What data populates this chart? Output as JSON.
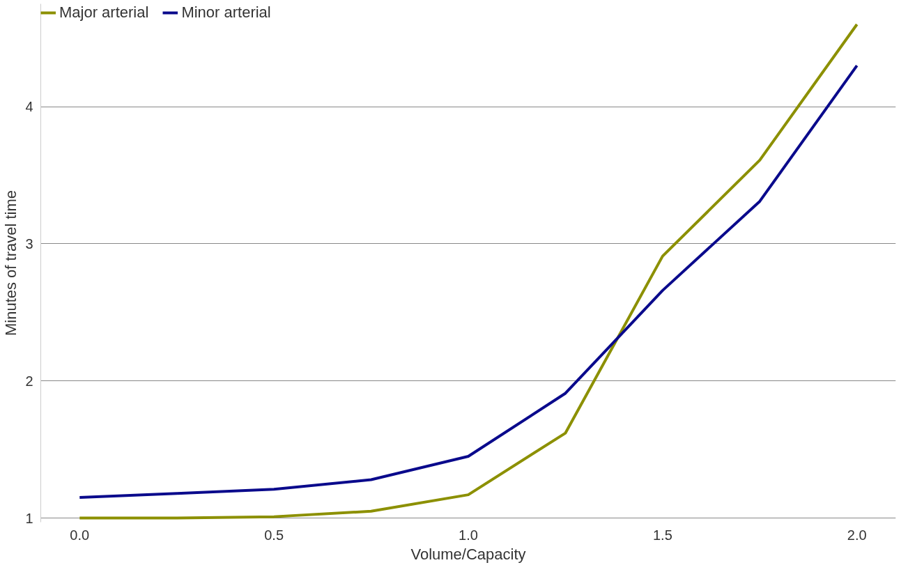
{
  "chart_data": {
    "type": "line",
    "xlabel": "Volume/Capacity",
    "ylabel": "Minutes of travel time",
    "x": [
      0,
      0.25,
      0.5,
      0.75,
      1.0,
      1.25,
      1.5,
      1.75,
      2.0
    ],
    "series": [
      {
        "name": "Major arterial",
        "color": "#8c9000",
        "values": [
          1.0,
          1.0,
          1.01,
          1.05,
          1.17,
          1.62,
          2.91,
          3.61,
          4.6
        ]
      },
      {
        "name": "Minor arterial",
        "color": "#0a0a8c",
        "values": [
          1.15,
          1.18,
          1.21,
          1.28,
          1.45,
          1.91,
          2.66,
          3.31,
          4.3
        ]
      }
    ],
    "xlim": [
      -0.1,
      2.1
    ],
    "xticks": [
      {
        "value": 0,
        "label": "0.0"
      },
      0.5,
      {
        "value": 1,
        "label": "1.0"
      },
      1.5,
      {
        "value": 2,
        "label": "2.0"
      }
    ],
    "ylim": [
      0.97,
      4.75
    ],
    "yticks": [
      1,
      2,
      3,
      4
    ],
    "grid": "y",
    "legend": "top left",
    "marker": "none",
    "line_style": "solid"
  }
}
